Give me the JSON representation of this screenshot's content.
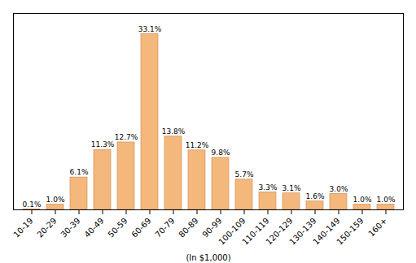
{
  "chart_data": {
    "type": "bar",
    "categories": [
      "10-19",
      "20-29",
      "30-39",
      "40-49",
      "50-59",
      "60-69",
      "70-79",
      "80-89",
      "90-99",
      "100-109",
      "110-119",
      "120-129",
      "130-139",
      "140-149",
      "150-159",
      "160+"
    ],
    "values": [
      0.1,
      1.0,
      6.1,
      11.3,
      12.7,
      33.1,
      13.8,
      11.2,
      9.8,
      5.7,
      3.3,
      3.1,
      1.6,
      3.0,
      1.0,
      1.0
    ],
    "value_labels": [
      "0.1%",
      "1.0%",
      "6.1%",
      "11.3%",
      "12.7%",
      "33.1%",
      "13.8%",
      "11.2%",
      "9.8%",
      "5.7%",
      "3.3%",
      "3.1%",
      "1.6%",
      "3.0%",
      "1.0%",
      "1.0%"
    ],
    "color": "#F5B87C",
    "xlabel": "(In $1,000)",
    "ylim": [
      0,
      37
    ],
    "tick_labels": "x",
    "data_labels": true,
    "grid": false
  }
}
